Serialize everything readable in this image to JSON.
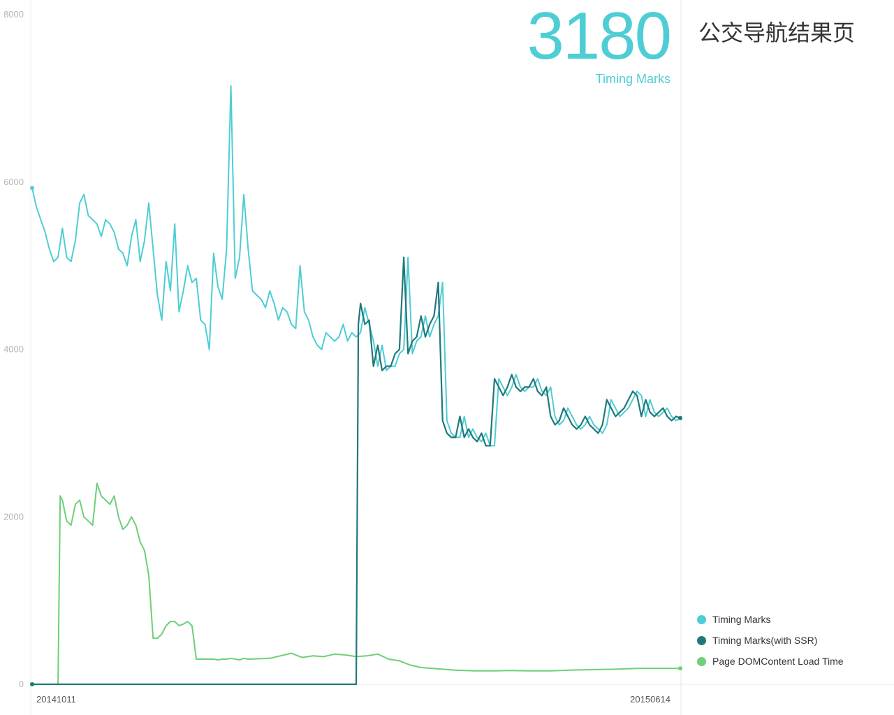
{
  "header": {
    "value": "3180",
    "value_label": "Timing Marks",
    "page_title": "公交导航结果页"
  },
  "chart_data": {
    "type": "line",
    "xlabel": "",
    "ylabel": "",
    "ylim": [
      0,
      8000
    ],
    "yticks": [
      0,
      2000,
      4000,
      6000,
      8000
    ],
    "x_tick_labels": [
      "20141011",
      "20150614"
    ],
    "x_range": [
      0,
      300
    ],
    "grid": false,
    "legend": "bottom-right",
    "series": [
      {
        "name": "Timing Marks",
        "color": "#4ecdd4",
        "x": [
          0,
          2,
          4,
          6,
          8,
          10,
          12,
          14,
          16,
          18,
          20,
          22,
          24,
          26,
          28,
          30,
          32,
          34,
          36,
          38,
          40,
          42,
          44,
          46,
          48,
          50,
          52,
          54,
          56,
          58,
          60,
          62,
          64,
          66,
          68,
          70,
          72,
          74,
          76,
          78,
          80,
          82,
          84,
          86,
          88,
          90,
          92,
          94,
          96,
          98,
          100,
          102,
          104,
          106,
          108,
          110,
          112,
          114,
          116,
          118,
          120,
          122,
          124,
          126,
          128,
          130,
          132,
          134,
          136,
          138,
          140,
          142,
          144,
          146,
          148,
          150,
          152,
          154,
          156,
          158,
          160,
          162,
          164,
          166,
          168,
          170,
          172,
          174,
          176,
          178,
          180,
          182,
          184,
          186,
          188,
          190,
          192,
          194,
          196,
          198,
          200,
          202,
          204,
          206,
          208,
          210,
          212,
          214,
          216,
          218,
          220,
          222,
          224,
          226,
          228,
          230,
          232,
          234,
          236,
          238,
          240,
          242,
          244,
          246,
          248,
          250,
          252,
          254,
          256,
          258,
          260,
          262,
          264,
          266,
          268,
          270,
          272,
          274,
          276,
          278,
          280,
          282,
          284,
          286,
          288,
          290,
          292,
          294,
          296,
          298,
          300
        ],
        "values": [
          5930,
          5700,
          5550,
          5400,
          5200,
          5050,
          5100,
          5450,
          5100,
          5050,
          5300,
          5750,
          5850,
          5600,
          5550,
          5500,
          5350,
          5550,
          5500,
          5400,
          5200,
          5150,
          5000,
          5350,
          5550,
          5050,
          5300,
          5750,
          5200,
          4650,
          4350,
          5050,
          4700,
          5500,
          4450,
          4700,
          5000,
          4800,
          4850,
          4350,
          4300,
          4000,
          5150,
          4750,
          4600,
          5200,
          7150,
          4850,
          5100,
          5850,
          5200,
          4700,
          4650,
          4600,
          4500,
          4700,
          4550,
          4350,
          4500,
          4450,
          4300,
          4250,
          5000,
          4450,
          4350,
          4150,
          4050,
          4000,
          4200,
          4150,
          4100,
          4150,
          4300,
          4100,
          4200,
          4150,
          4200,
          4500,
          4300,
          4100,
          3800,
          4050,
          3750,
          3800,
          3800,
          3950,
          4000,
          5100,
          3950,
          4100,
          4150,
          4400,
          4150,
          4300,
          4400,
          4800,
          3150,
          3000,
          2950,
          2950,
          3200,
          2950,
          3050,
          2950,
          2900,
          3000,
          2850,
          2850,
          3650,
          3550,
          3450,
          3550,
          3700,
          3550,
          3500,
          3550,
          3550,
          3650,
          3500,
          3450,
          3550,
          3200,
          3100,
          3150,
          3300,
          3200,
          3100,
          3050,
          3100,
          3200,
          3100,
          3050,
          3000,
          3100,
          3400,
          3300,
          3200,
          3250,
          3300,
          3400,
          3500,
          3450,
          3200,
          3400,
          3250,
          3200,
          3250,
          3300,
          3200,
          3150,
          3180
        ]
      },
      {
        "name": "Timing Marks(with SSR)",
        "color": "#21787a",
        "x": [
          0,
          150,
          151,
          152,
          154,
          156,
          158,
          160,
          162,
          164,
          166,
          168,
          170,
          172,
          174,
          176,
          178,
          180,
          182,
          184,
          186,
          188,
          190,
          192,
          194,
          196,
          198,
          200,
          202,
          204,
          206,
          208,
          210,
          212,
          214,
          216,
          218,
          220,
          222,
          224,
          226,
          228,
          230,
          232,
          234,
          236,
          238,
          240,
          242,
          244,
          246,
          248,
          250,
          252,
          254,
          256,
          258,
          260,
          262,
          264,
          266,
          268,
          270,
          272,
          274,
          276,
          278,
          280,
          282,
          284,
          286,
          288,
          290,
          292,
          294,
          296,
          298,
          300
        ],
        "values": [
          0,
          0,
          4300,
          4550,
          4300,
          4350,
          3800,
          4050,
          3750,
          3800,
          3800,
          3950,
          4000,
          5100,
          3950,
          4100,
          4150,
          4400,
          4150,
          4300,
          4400,
          4800,
          3150,
          3000,
          2950,
          2950,
          3200,
          2950,
          3050,
          2950,
          2900,
          3000,
          2850,
          2850,
          3650,
          3550,
          3450,
          3550,
          3700,
          3550,
          3500,
          3550,
          3550,
          3650,
          3500,
          3450,
          3550,
          3200,
          3100,
          3150,
          3300,
          3200,
          3100,
          3050,
          3100,
          3200,
          3100,
          3050,
          3000,
          3100,
          3400,
          3300,
          3200,
          3250,
          3300,
          3400,
          3500,
          3450,
          3200,
          3400,
          3250,
          3200,
          3250,
          3300,
          3200,
          3150,
          3200,
          3180
        ]
      },
      {
        "name": "Page DOMContent Load Time",
        "color": "#6dcf78",
        "x": [
          0,
          12,
          13,
          14,
          16,
          18,
          20,
          22,
          24,
          26,
          28,
          30,
          32,
          34,
          36,
          38,
          40,
          42,
          44,
          46,
          48,
          50,
          52,
          54,
          56,
          58,
          60,
          62,
          64,
          66,
          68,
          70,
          72,
          74,
          76,
          78,
          80,
          82,
          84,
          86,
          88,
          90,
          92,
          94,
          96,
          98,
          100,
          110,
          120,
          125,
          130,
          135,
          140,
          145,
          150,
          155,
          160,
          165,
          170,
          175,
          180,
          185,
          190,
          195,
          200,
          205,
          210,
          215,
          220,
          230,
          240,
          250,
          260,
          270,
          280,
          290,
          300
        ],
        "values": [
          0,
          0,
          2250,
          2200,
          1950,
          1900,
          2150,
          2200,
          2000,
          1950,
          1900,
          2400,
          2250,
          2200,
          2150,
          2250,
          2000,
          1850,
          1900,
          2000,
          1900,
          1700,
          1600,
          1300,
          550,
          550,
          600,
          700,
          750,
          750,
          700,
          720,
          750,
          700,
          300,
          300,
          300,
          300,
          300,
          290,
          300,
          300,
          310,
          300,
          290,
          310,
          300,
          310,
          370,
          320,
          340,
          330,
          360,
          350,
          330,
          340,
          360,
          300,
          280,
          230,
          200,
          190,
          180,
          170,
          165,
          160,
          160,
          160,
          165,
          160,
          160,
          170,
          175,
          180,
          190,
          190,
          190
        ]
      }
    ]
  }
}
